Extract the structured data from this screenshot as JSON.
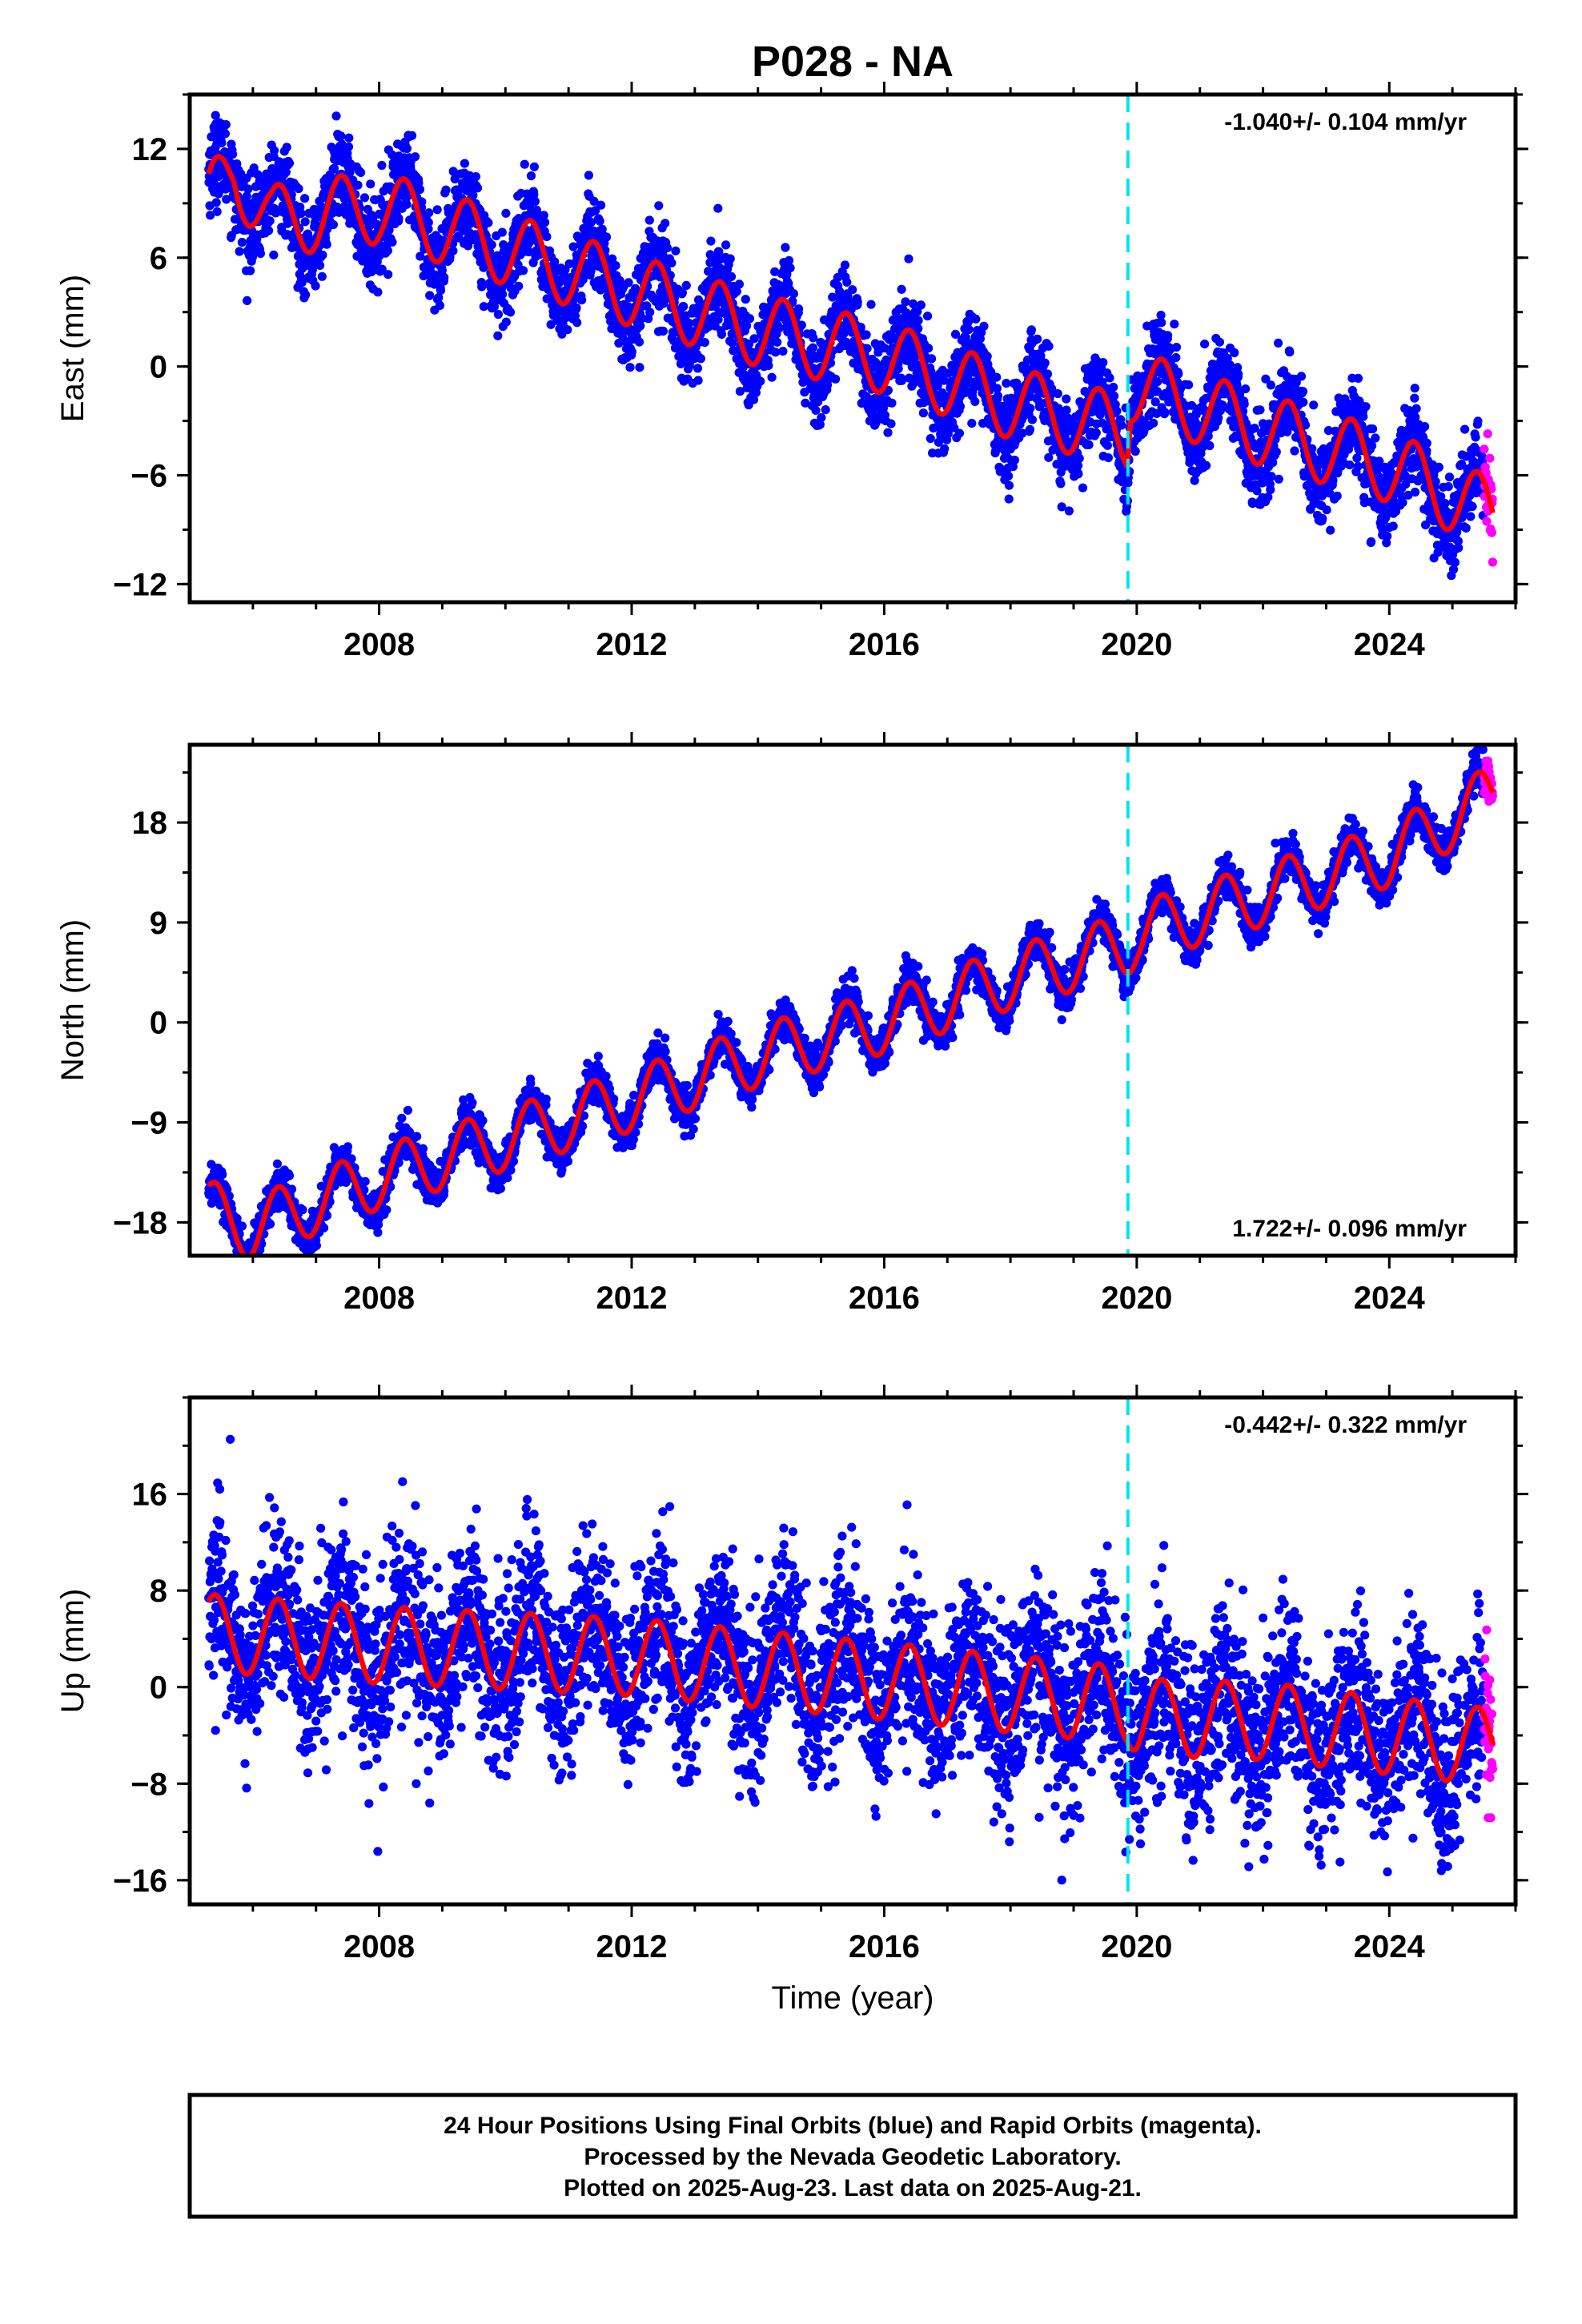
{
  "title": "P028 - NA",
  "colors": {
    "final": "#0000ff",
    "rapid": "#ff00ff",
    "model": "#ff0000",
    "event": "#00e5ee"
  },
  "event_year": 2019.86,
  "chart_data": [
    {
      "type": "scatter",
      "name": "east",
      "ylabel": "East (mm)",
      "xlim": [
        2005.0,
        2026.0
      ],
      "ylim": [
        -13,
        15
      ],
      "yticks": [
        12,
        6,
        0,
        -6,
        -12
      ],
      "xticks": [
        2008,
        2012,
        2016,
        2020,
        2024
      ],
      "rate_label": "-1.040+/- 0.104 mm/yr",
      "rate_position": "top-right",
      "start_year": 2005.3,
      "end_year": 2025.64,
      "start_value": 9.0,
      "slope_mm_per_yr": -1.04,
      "annual_amplitude_mm": 2.0,
      "noise_mm": 1.2,
      "rapid_start_year": 2025.5,
      "model_knots": [
        [
          2005.3,
          9.0
        ],
        [
          2005.7,
          10.8
        ],
        [
          2006.3,
          8.0
        ],
        [
          2008.0,
          8.8
        ],
        [
          2010.0,
          6.5
        ],
        [
          2012.0,
          4.2
        ],
        [
          2014.0,
          2.0
        ],
        [
          2016.0,
          0.5
        ],
        [
          2018.0,
          -2.0
        ],
        [
          2019.85,
          -3.6
        ],
        [
          2019.9,
          -1.0
        ],
        [
          2022.0,
          -3.5
        ],
        [
          2024.0,
          -5.5
        ],
        [
          2025.64,
          -8.2
        ]
      ]
    },
    {
      "type": "scatter",
      "name": "north",
      "ylabel": "North (mm)",
      "xlim": [
        2005.0,
        2026.0
      ],
      "ylim": [
        -21,
        25
      ],
      "yticks": [
        18,
        9,
        0,
        -9,
        -18
      ],
      "xticks": [
        2008,
        2012,
        2016,
        2020,
        2024
      ],
      "rate_label": "1.722+/- 0.096 mm/yr",
      "rate_position": "bottom-right",
      "start_year": 2005.3,
      "end_year": 2025.64,
      "start_value": -17.5,
      "slope_mm_per_yr": 1.9,
      "annual_amplitude_mm": 2.8,
      "noise_mm": 0.9,
      "rapid_start_year": 2025.5,
      "model_knots": [
        [
          2005.3,
          -17.0
        ],
        [
          2006.0,
          -18.5
        ],
        [
          2008.0,
          -14.0
        ],
        [
          2010.0,
          -10.5
        ],
        [
          2012.0,
          -7.0
        ],
        [
          2014.0,
          -3.0
        ],
        [
          2016.0,
          0.0
        ],
        [
          2018.0,
          4.0
        ],
        [
          2019.85,
          7.0
        ],
        [
          2020.0,
          8.0
        ],
        [
          2022.0,
          11.5
        ],
        [
          2024.0,
          15.0
        ],
        [
          2025.64,
          20.5
        ]
      ]
    },
    {
      "type": "scatter",
      "name": "up",
      "ylabel": "Up (mm)",
      "xlabel": "Time (year)",
      "xlim": [
        2005.0,
        2026.0
      ],
      "ylim": [
        -18,
        24
      ],
      "yticks": [
        16,
        8,
        0,
        -8,
        -16
      ],
      "xticks": [
        2008,
        2012,
        2016,
        2020,
        2024
      ],
      "rate_label": "-0.442+/- 0.322 mm/yr",
      "rate_position": "top-right",
      "start_year": 2005.3,
      "end_year": 2025.64,
      "start_value": 3.5,
      "slope_mm_per_yr": -0.3,
      "annual_amplitude_mm": 3.2,
      "noise_mm": 3.6,
      "rapid_start_year": 2025.5,
      "model_knots": [
        [
          2005.3,
          4.5
        ],
        [
          2008.0,
          3.5
        ],
        [
          2012.0,
          2.5
        ],
        [
          2016.0,
          0.5
        ],
        [
          2019.85,
          -1.5
        ],
        [
          2020.0,
          -2.5
        ],
        [
          2022.0,
          -2.8
        ],
        [
          2025.64,
          -5.0
        ]
      ]
    }
  ],
  "footer": {
    "line1": "24 Hour Positions Using Final Orbits (blue) and Rapid Orbits (magenta).",
    "line2": "Processed by the Nevada Geodetic Laboratory.",
    "line3": "Plotted on 2025-Aug-23. Last data on 2025-Aug-21."
  }
}
